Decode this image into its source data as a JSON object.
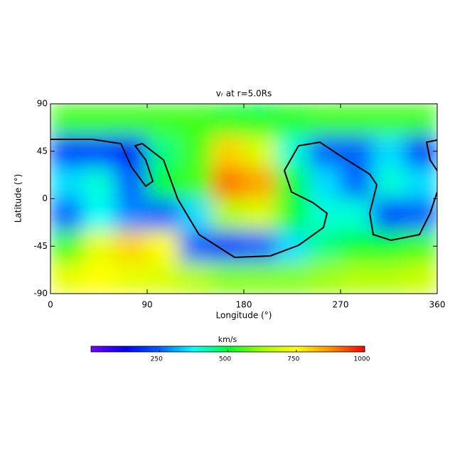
{
  "chart_data": {
    "type": "heatmap",
    "title": "vᵣ at r=5.0Rs",
    "xlabel": "Longitude (°)",
    "ylabel": "Latitude (°)",
    "xbins": [
      0,
      30,
      60,
      90,
      120,
      150,
      180,
      210,
      240,
      270,
      300,
      330,
      360
    ],
    "ybins": [
      90,
      60,
      30,
      0,
      -30,
      -60,
      -90
    ],
    "values": [
      [
        550,
        550,
        550,
        550,
        550,
        520,
        500,
        530,
        550,
        550,
        550,
        550
      ],
      [
        200,
        200,
        150,
        450,
        550,
        800,
        700,
        400,
        250,
        250,
        350,
        200
      ],
      [
        350,
        400,
        250,
        500,
        550,
        900,
        850,
        500,
        350,
        250,
        400,
        350
      ],
      [
        250,
        380,
        280,
        250,
        350,
        650,
        700,
        500,
        400,
        400,
        200,
        250
      ],
      [
        550,
        720,
        800,
        750,
        250,
        200,
        250,
        350,
        450,
        500,
        500,
        550
      ],
      [
        720,
        750,
        720,
        700,
        650,
        600,
        600,
        600,
        620,
        650,
        650,
        680
      ]
    ],
    "xlim": [
      0,
      360
    ],
    "ylim": [
      -90,
      90
    ],
    "xticks": [
      0,
      90,
      180,
      270,
      360
    ],
    "yticks": [
      -90,
      -45,
      0,
      45,
      90
    ],
    "colorbar": {
      "label": "km/s",
      "lim": [
        0,
        1000
      ],
      "ticks": [
        250,
        500,
        750,
        1000
      ]
    },
    "colorscale": [
      "#7f00ff",
      "#0000ff",
      "#0060ff",
      "#00ffff",
      "#00ff30",
      "#a0ff00",
      "#ffff00",
      "#ff9000",
      "#ff0000"
    ]
  }
}
